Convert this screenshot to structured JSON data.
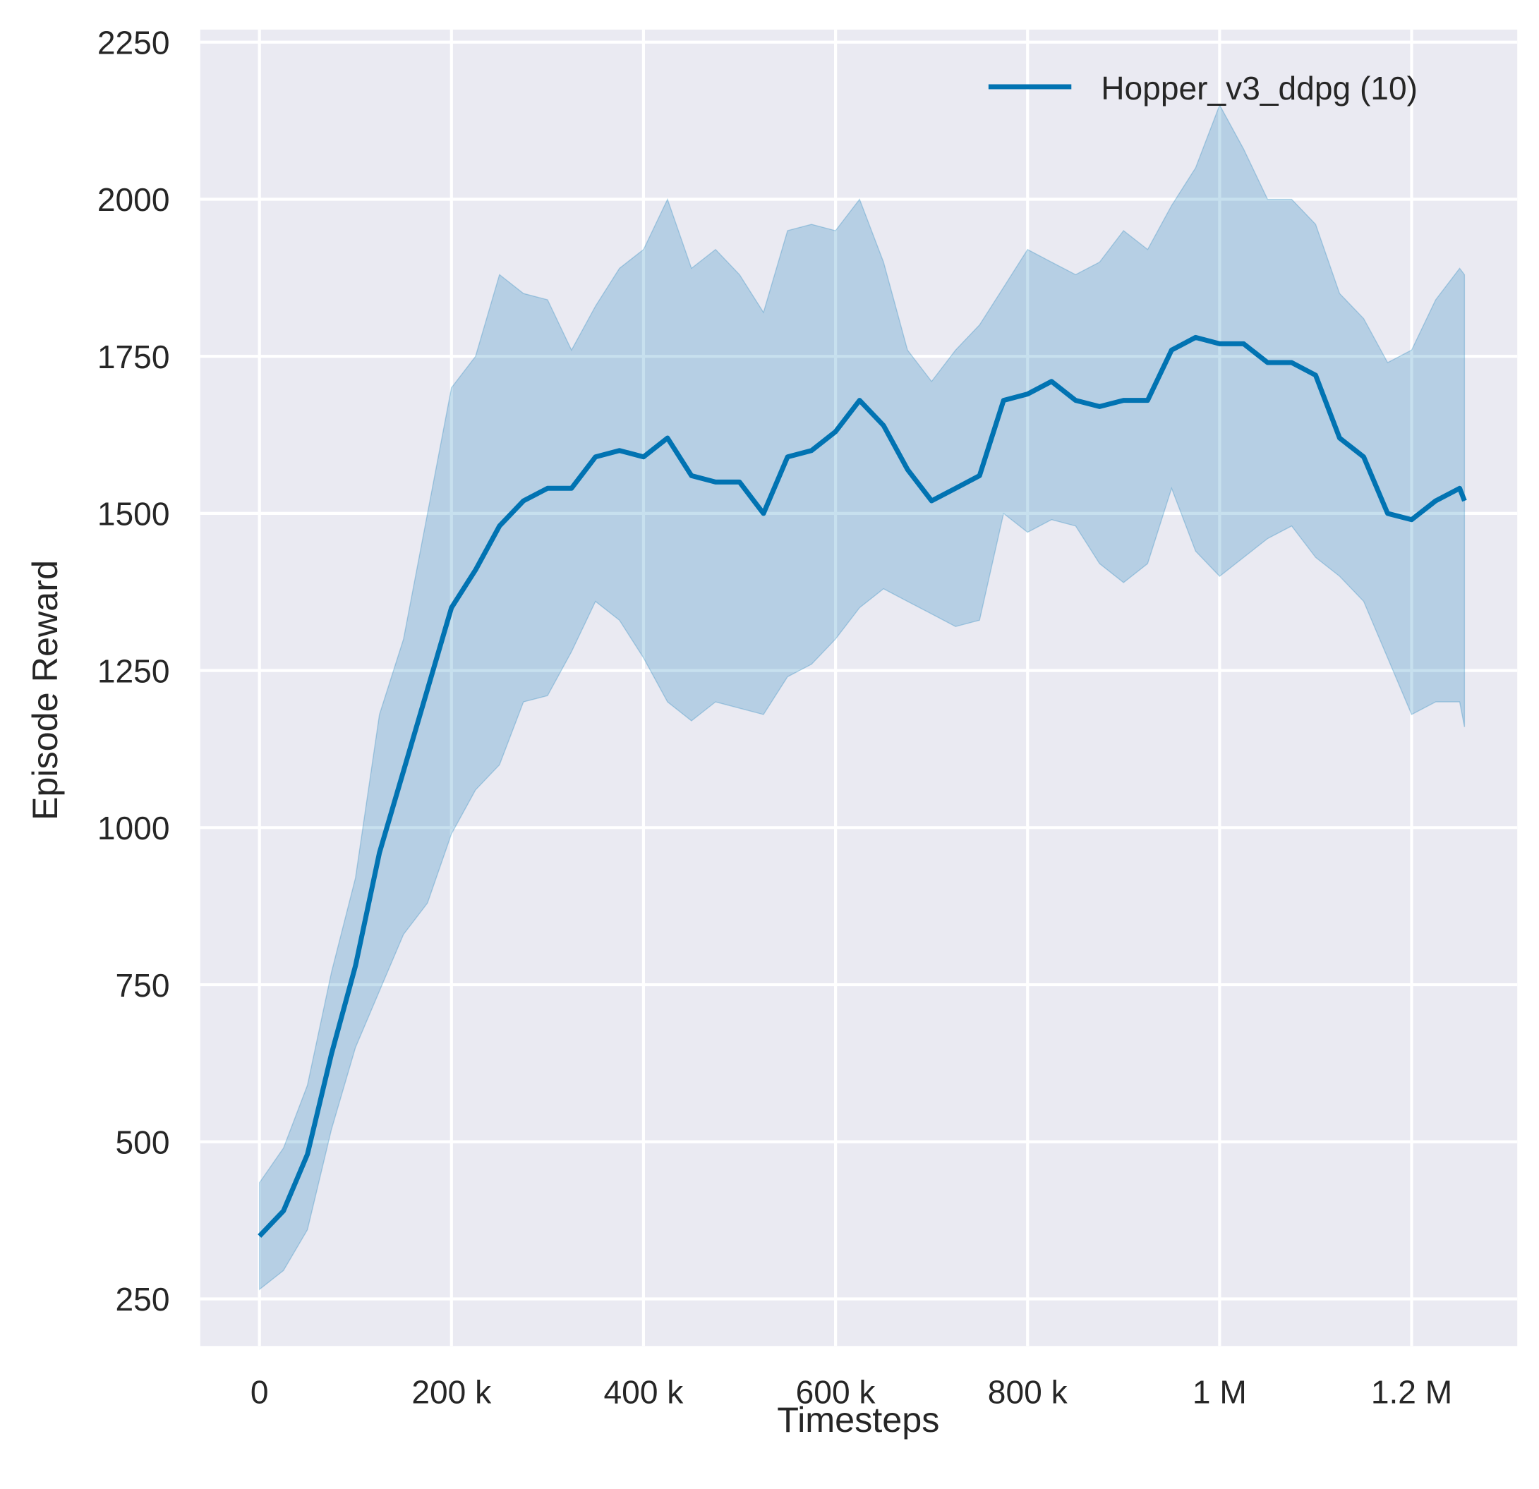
{
  "chart_data": {
    "type": "line",
    "title": "",
    "xlabel": "Timesteps",
    "ylabel": "Episode Reward",
    "xlim": [
      -61600,
      1310000
    ],
    "ylim": [
      175,
      2270
    ],
    "xticks": [
      0,
      200000,
      400000,
      600000,
      800000,
      1000000,
      1200000
    ],
    "xtick_labels": [
      "0",
      "200 k",
      "400 k",
      "600 k",
      "800 k",
      "1 M",
      "1.2 M"
    ],
    "yticks": [
      250,
      500,
      750,
      1000,
      1250,
      1500,
      1750,
      2000,
      2250
    ],
    "ytick_labels": [
      "250",
      "500",
      "750",
      "1000",
      "1250",
      "1500",
      "1750",
      "2000",
      "2250"
    ],
    "grid": true,
    "legend_position": "top-right",
    "series": [
      {
        "name": "Hopper_v3_ddpg (10)",
        "color": "#0173b2",
        "x": [
          0,
          25000,
          50000,
          75000,
          100000,
          125000,
          150000,
          175000,
          200000,
          225000,
          250000,
          275000,
          300000,
          325000,
          350000,
          375000,
          400000,
          425000,
          450000,
          475000,
          500000,
          525000,
          550000,
          575000,
          600000,
          625000,
          650000,
          675000,
          700000,
          725000,
          750000,
          775000,
          800000,
          825000,
          850000,
          875000,
          900000,
          925000,
          950000,
          975000,
          1000000,
          1025000,
          1050000,
          1075000,
          1100000,
          1125000,
          1150000,
          1175000,
          1200000,
          1225000,
          1250000,
          1255000
        ],
        "mean": [
          350,
          390,
          480,
          640,
          780,
          960,
          1090,
          1220,
          1350,
          1410,
          1480,
          1520,
          1540,
          1540,
          1590,
          1600,
          1590,
          1620,
          1560,
          1550,
          1550,
          1500,
          1590,
          1600,
          1630,
          1680,
          1640,
          1570,
          1520,
          1540,
          1560,
          1680,
          1690,
          1710,
          1680,
          1670,
          1680,
          1680,
          1760,
          1780,
          1770,
          1770,
          1740,
          1740,
          1720,
          1620,
          1590,
          1500,
          1490,
          1520,
          1540,
          1520
        ],
        "upper": [
          435,
          490,
          590,
          770,
          920,
          1180,
          1300,
          1500,
          1700,
          1750,
          1880,
          1850,
          1840,
          1760,
          1830,
          1890,
          1920,
          2000,
          1890,
          1920,
          1880,
          1820,
          1950,
          1960,
          1950,
          2000,
          1900,
          1760,
          1710,
          1760,
          1800,
          1860,
          1920,
          1900,
          1880,
          1900,
          1950,
          1920,
          1990,
          2050,
          2150,
          2080,
          2000,
          2000,
          1960,
          1850,
          1810,
          1740,
          1760,
          1840,
          1890,
          1880
        ],
        "lower": [
          265,
          295,
          360,
          520,
          650,
          740,
          830,
          880,
          990,
          1060,
          1100,
          1200,
          1210,
          1280,
          1360,
          1330,
          1270,
          1200,
          1170,
          1200,
          1190,
          1180,
          1240,
          1260,
          1300,
          1350,
          1380,
          1360,
          1340,
          1320,
          1330,
          1500,
          1470,
          1490,
          1480,
          1420,
          1390,
          1420,
          1540,
          1440,
          1400,
          1430,
          1460,
          1480,
          1430,
          1400,
          1360,
          1270,
          1180,
          1200,
          1200,
          1160
        ]
      }
    ]
  },
  "colors": {
    "background": "#eaeaf2",
    "grid": "#ffffff",
    "line": "#0173b2",
    "band": "#0173b2"
  }
}
